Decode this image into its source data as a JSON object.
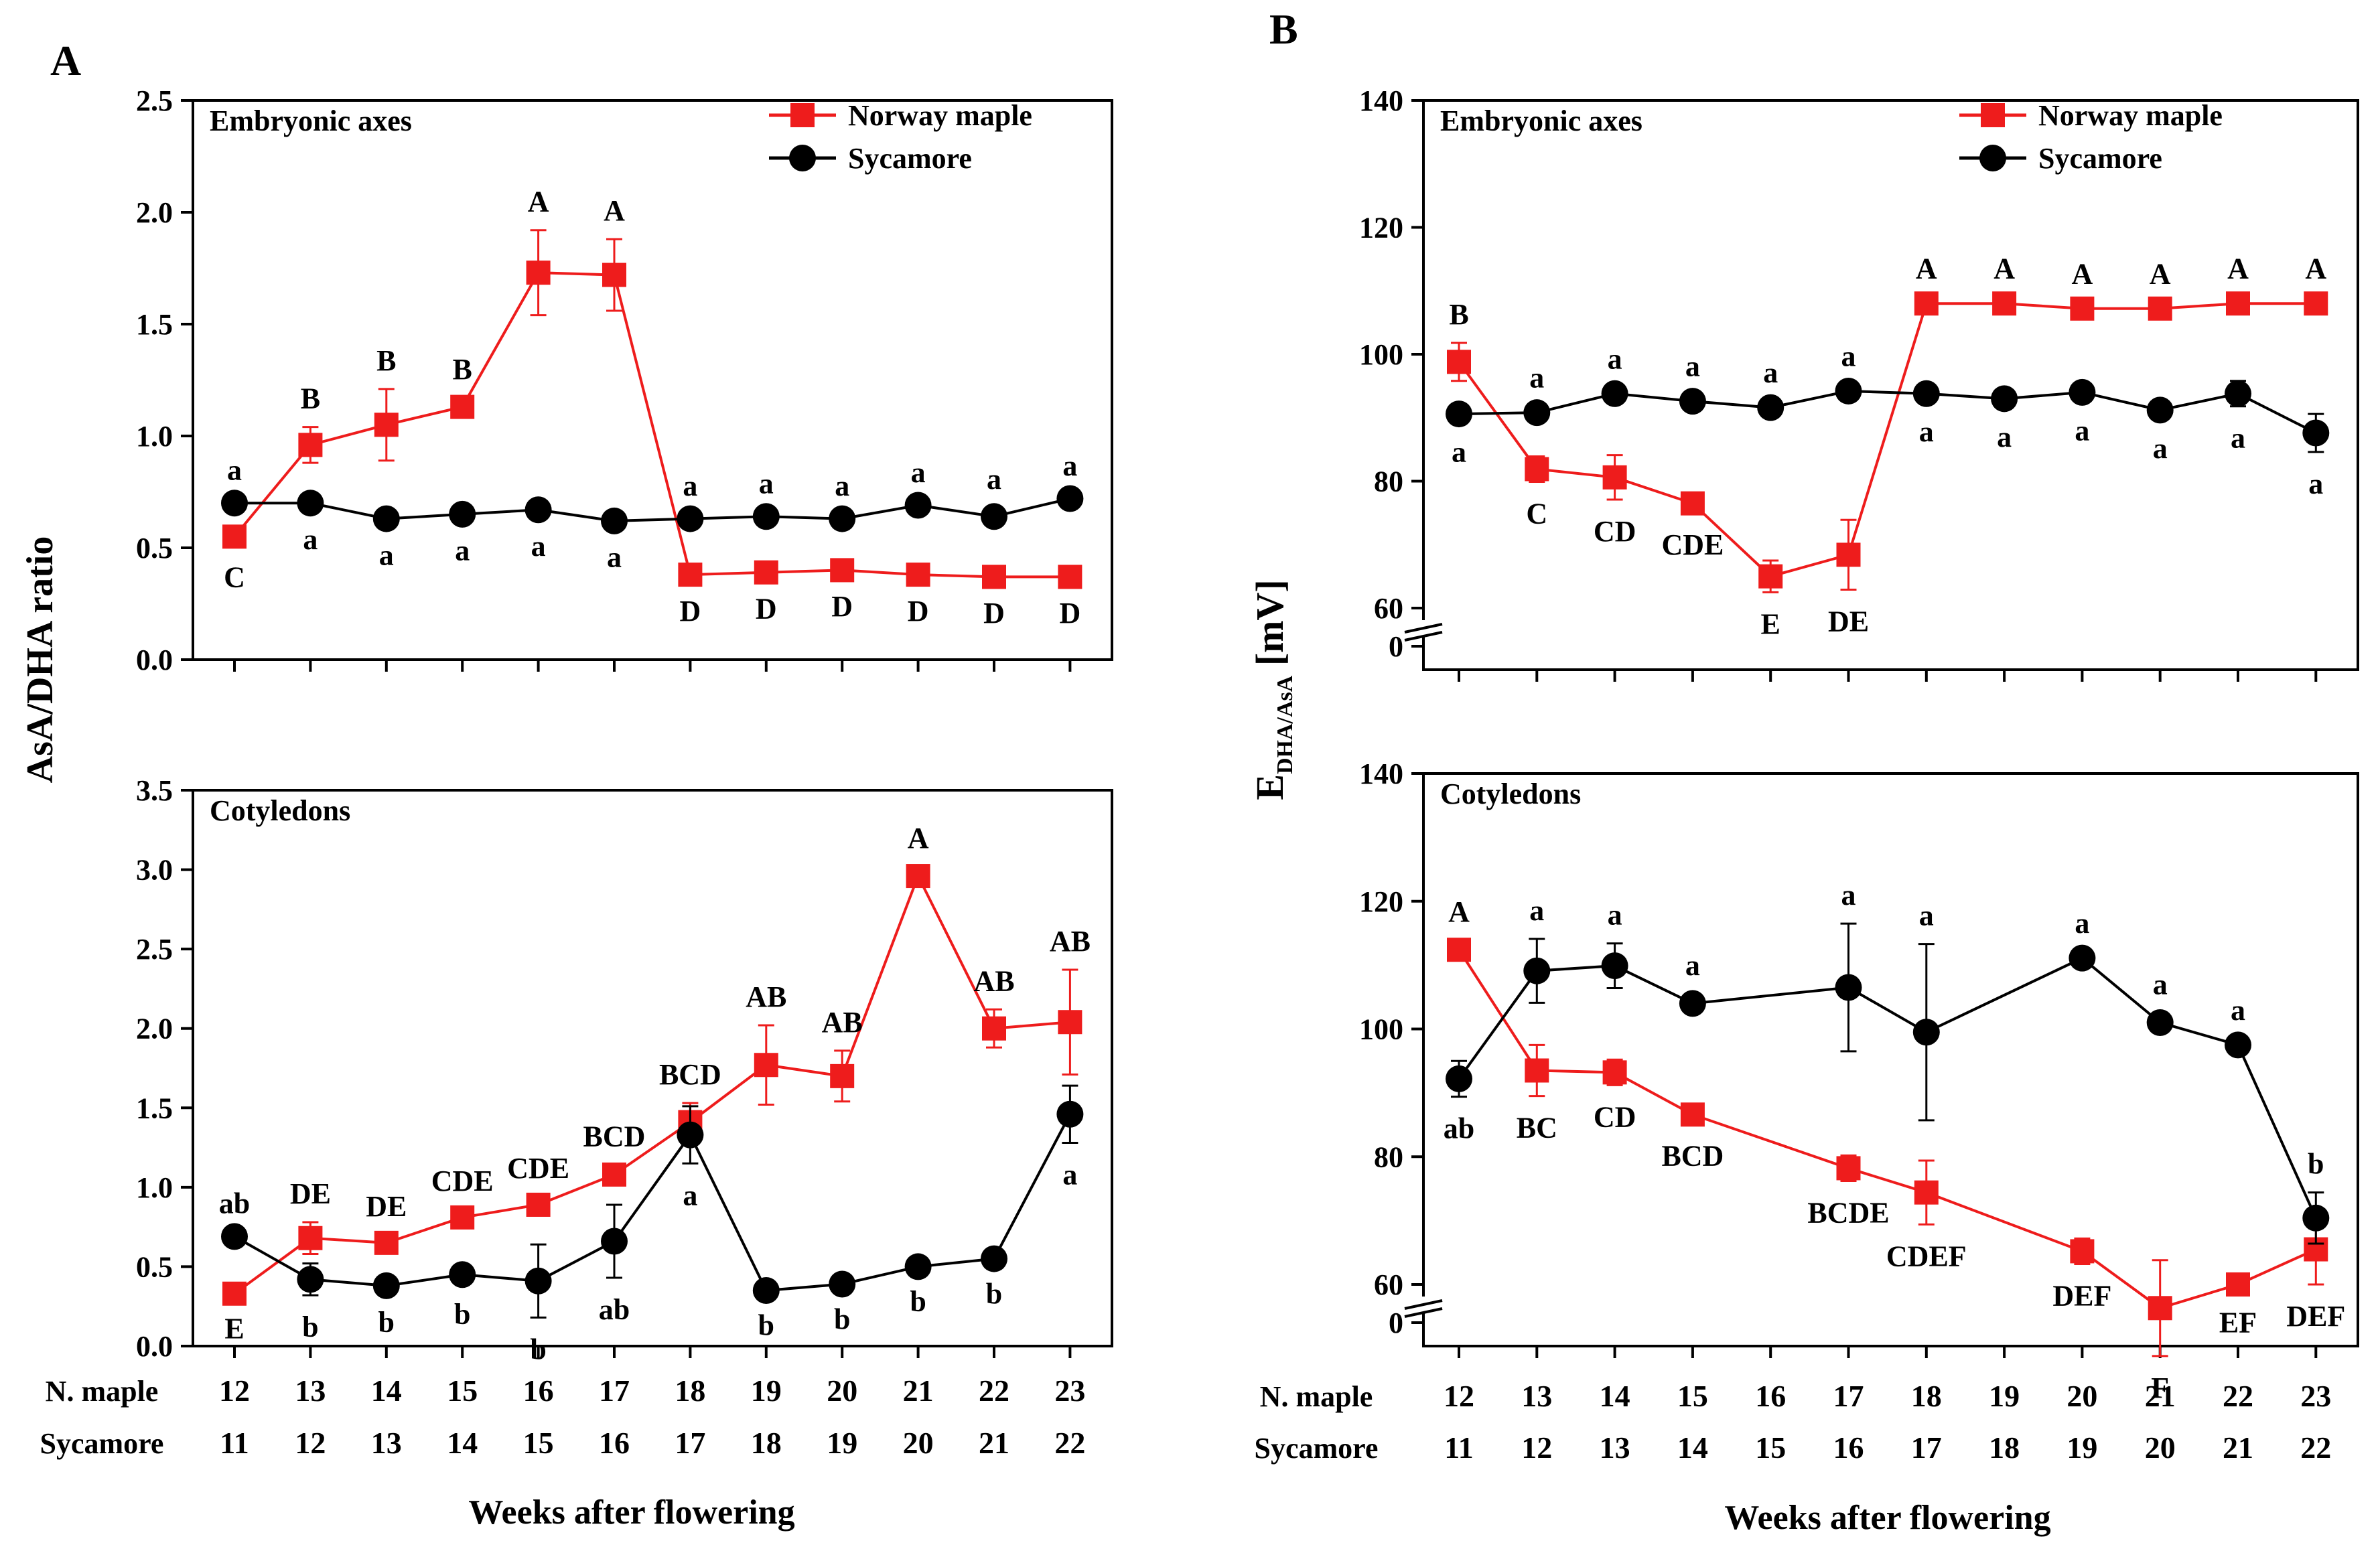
{
  "colors": {
    "norway": "#ee1c1c",
    "sycamore": "#000000",
    "axis": "#000000"
  },
  "chart_data": [
    {
      "type": "line",
      "panel_letter": "A",
      "subplot": "Embryonic axes",
      "ylabel": "AsA/DHA ratio",
      "ylim": [
        0,
        2.5
      ],
      "yticks": [
        0,
        0.5,
        1,
        1.5,
        2,
        2.5
      ],
      "ytick_labels": [
        "0.0",
        "0.5",
        "1.0",
        "1.5",
        "2.0",
        "2.5"
      ],
      "x": [
        12,
        13,
        14,
        15,
        16,
        17,
        18,
        19,
        20,
        21,
        22,
        23
      ],
      "series": [
        {
          "name": "Norway maple",
          "values": [
            0.55,
            0.96,
            1.05,
            1.13,
            1.73,
            1.72,
            0.38,
            0.39,
            0.4,
            0.38,
            0.37,
            0.37
          ],
          "errors": [
            0.04,
            0.08,
            0.16,
            0.04,
            0.19,
            0.16,
            0.02,
            0.02,
            0.02,
            0.02,
            0.02,
            0.02
          ],
          "letters": [
            "C",
            "B",
            "B",
            "B",
            "A",
            "A",
            "D",
            "D",
            "D",
            "D",
            "D",
            "D"
          ]
        },
        {
          "name": "Sycamore",
          "values": [
            0.7,
            0.7,
            0.63,
            0.65,
            0.67,
            0.62,
            0.63,
            0.64,
            0.63,
            0.69,
            0.64,
            0.72
          ],
          "errors": [
            0.02,
            0.02,
            0.02,
            0.02,
            0.02,
            0.02,
            0.02,
            0.02,
            0.02,
            0.02,
            0.04,
            0.02
          ],
          "letters": [
            "a",
            "a",
            "a",
            "a",
            "a",
            "a",
            "a",
            "a",
            "a",
            "a",
            "a",
            "a"
          ]
        }
      ]
    },
    {
      "type": "line",
      "subplot": "Cotyledons",
      "ylim": [
        0,
        3.5
      ],
      "yticks": [
        0,
        0.5,
        1,
        1.5,
        2,
        2.5,
        3,
        3.5
      ],
      "ytick_labels": [
        "0.0",
        "0.5",
        "1.0",
        "1.5",
        "2.0",
        "2.5",
        "3.0",
        "3.5"
      ],
      "x": [
        12,
        13,
        14,
        15,
        16,
        17,
        18,
        19,
        20,
        21,
        22,
        23
      ],
      "series": [
        {
          "name": "Norway maple",
          "values": [
            0.33,
            0.68,
            0.65,
            0.81,
            0.89,
            1.08,
            1.41,
            1.77,
            1.7,
            2.96,
            2.0,
            2.04
          ],
          "errors": [
            0.02,
            0.1,
            0.05,
            0.05,
            0.05,
            0.06,
            0.12,
            0.25,
            0.16,
            0.06,
            0.12,
            0.33
          ],
          "letters": [
            "E",
            "DE",
            "DE",
            "CDE",
            "CDE",
            "BCD",
            "BCD",
            "AB",
            "AB",
            "A",
            "AB",
            "AB"
          ]
        },
        {
          "name": "Sycamore",
          "values": [
            0.69,
            0.42,
            0.38,
            0.45,
            0.41,
            0.66,
            1.33,
            0.35,
            0.39,
            0.5,
            0.55,
            1.46
          ],
          "errors": [
            0.03,
            0.1,
            0.03,
            0.05,
            0.23,
            0.23,
            0.18,
            0.02,
            0.02,
            0.02,
            0.02,
            0.18
          ],
          "letters": [
            "ab",
            "b",
            "b",
            "b",
            "b",
            "ab",
            "a",
            "b",
            "b",
            "b",
            "b",
            "a"
          ]
        }
      ]
    },
    {
      "type": "line",
      "panel_letter": "B",
      "subplot": "Embryonic axes",
      "ylabel_main": "E",
      "ylabel_sub": "DHA/AsA",
      "ylabel_unit": "[mV]",
      "ylim": [
        0,
        140
      ],
      "axis_break": true,
      "yticks": [
        0,
        60,
        80,
        100,
        120,
        140
      ],
      "ytick_labels": [
        "0",
        "60",
        "80",
        "100",
        "120",
        "140"
      ],
      "x": [
        12,
        13,
        14,
        15,
        16,
        17,
        18,
        19,
        20,
        21,
        22,
        23
      ],
      "series": [
        {
          "name": "Norway maple",
          "values": [
            98.8,
            81.9,
            80.6,
            76.5,
            65.0,
            68.4,
            108.0,
            108.0,
            107.2,
            107.2,
            108.0,
            108.0
          ],
          "errors": [
            3.0,
            2.0,
            3.5,
            1.5,
            2.5,
            5.5,
            1.0,
            1.0,
            1.0,
            1.0,
            1.0,
            1.0
          ],
          "letters": [
            "B",
            "C",
            "CD",
            "CDE",
            "E",
            "DE",
            "A",
            "A",
            "A",
            "A",
            "A",
            "A"
          ]
        },
        {
          "name": "Sycamore",
          "values": [
            90.6,
            90.8,
            93.8,
            92.6,
            91.6,
            94.2,
            93.8,
            93.0,
            94.0,
            91.2,
            93.8,
            87.6
          ],
          "errors": [
            1.0,
            1.0,
            1.0,
            1.0,
            1.0,
            1.0,
            1.0,
            1.0,
            1.0,
            1.0,
            2.0,
            3.0
          ],
          "letters": [
            "a",
            "a",
            "a",
            "a",
            "a",
            "a",
            "a",
            "a",
            "a",
            "a",
            "a",
            "a"
          ]
        }
      ]
    },
    {
      "type": "line",
      "subplot": "Cotyledons",
      "ylim": [
        0,
        140
      ],
      "axis_break": true,
      "yticks": [
        0,
        60,
        80,
        100,
        120,
        140
      ],
      "ytick_labels": [
        "0",
        "60",
        "80",
        "100",
        "120",
        "140"
      ],
      "x": [
        12,
        13,
        14,
        15,
        17,
        18,
        20,
        21,
        22,
        23
      ],
      "series": [
        {
          "name": "Norway maple",
          "values": [
            112.4,
            93.5,
            93.2,
            86.6,
            78.2,
            74.4,
            65.2,
            56.3,
            60.0,
            65.5
          ],
          "errors": [
            1.5,
            4.0,
            2.0,
            1.5,
            2.0,
            5.0,
            2.0,
            7.5,
            1.0,
            5.5
          ],
          "letters": [
            "A",
            "BC",
            "CD",
            "BCD",
            "BCDE",
            "CDEF",
            "DEF",
            "F",
            "EF",
            "DEF"
          ]
        },
        {
          "name": "Sycamore",
          "values": [
            92.2,
            109.1,
            109.9,
            104.0,
            106.5,
            99.5,
            111.1,
            101.0,
            97.5,
            70.4
          ],
          "errors": [
            2.8,
            5.0,
            3.5,
            1.5,
            10.0,
            13.8,
            1.0,
            1.5,
            1.0,
            4.0
          ],
          "letters": [
            "ab",
            "a",
            "a",
            "a",
            "a",
            "a",
            "a",
            "a",
            "a",
            "b"
          ]
        }
      ]
    }
  ],
  "legend": {
    "norway": "Norway maple",
    "sycamore": "Sycamore"
  },
  "axis_rows": {
    "norway_label": "N. maple",
    "sycamore_label": "Sycamore",
    "norway_weeks": [
      "12",
      "13",
      "14",
      "15",
      "16",
      "17",
      "18",
      "19",
      "20",
      "21",
      "22",
      "23"
    ],
    "sycamore_weeks": [
      "11",
      "12",
      "13",
      "14",
      "15",
      "16",
      "17",
      "18",
      "19",
      "20",
      "21",
      "22"
    ]
  },
  "xlabel": "Weeks after flowering"
}
